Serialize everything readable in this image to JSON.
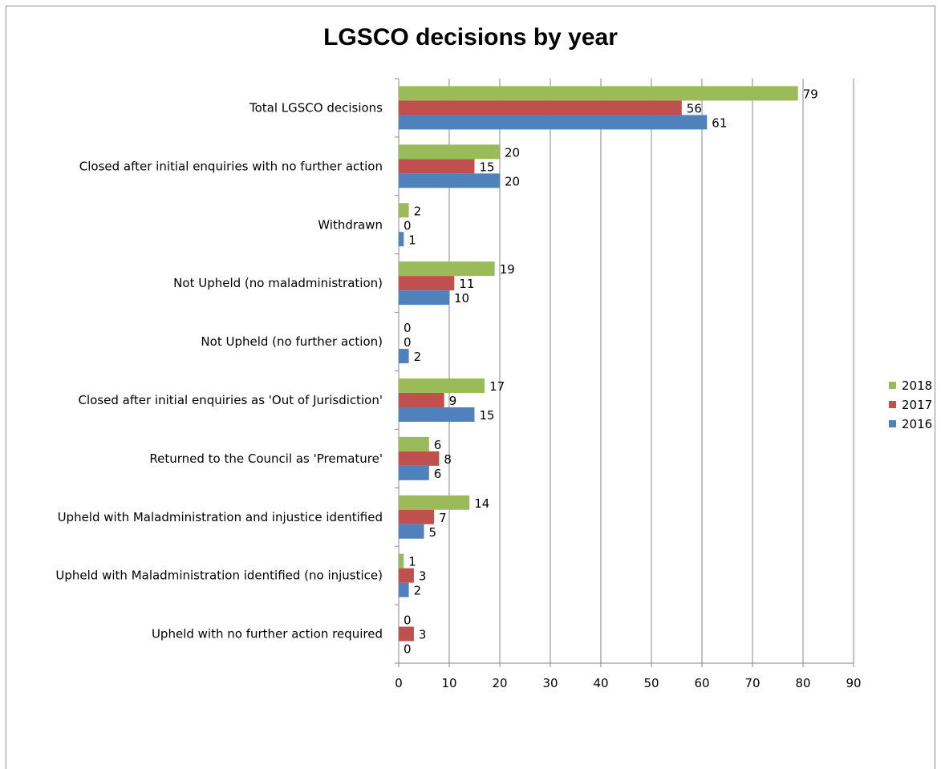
{
  "chart_data": {
    "type": "bar",
    "orientation": "horizontal",
    "title": "LGSCO decisions by year",
    "categories": [
      "Total LGSCO decisions",
      "Closed after initial enquiries with no further action",
      "Withdrawn",
      "Not Upheld (no maladministration)",
      "Not Upheld (no further action)",
      "Closed after initial enquiries as 'Out of Jurisdiction'",
      "Returned to the Council as 'Premature'",
      "Upheld with Maladministration and injustice identified",
      "Upheld with Maladministration identified (no injustice)",
      "Upheld with no further action required"
    ],
    "series": [
      {
        "name": "2018",
        "color": "#9bbb59",
        "values": [
          79,
          20,
          2,
          19,
          0,
          17,
          6,
          14,
          1,
          0
        ]
      },
      {
        "name": "2017",
        "color": "#c0504d",
        "values": [
          56,
          15,
          0,
          11,
          0,
          9,
          8,
          7,
          3,
          3
        ]
      },
      {
        "name": "2016",
        "color": "#4f81bd",
        "values": [
          61,
          20,
          1,
          10,
          2,
          15,
          6,
          5,
          2,
          0
        ]
      }
    ],
    "xlim": [
      0,
      90
    ],
    "xticks": [
      0,
      10,
      20,
      30,
      40,
      50,
      60,
      70,
      80,
      90
    ],
    "grid": true,
    "legend_position": "right",
    "data_labels": true
  }
}
